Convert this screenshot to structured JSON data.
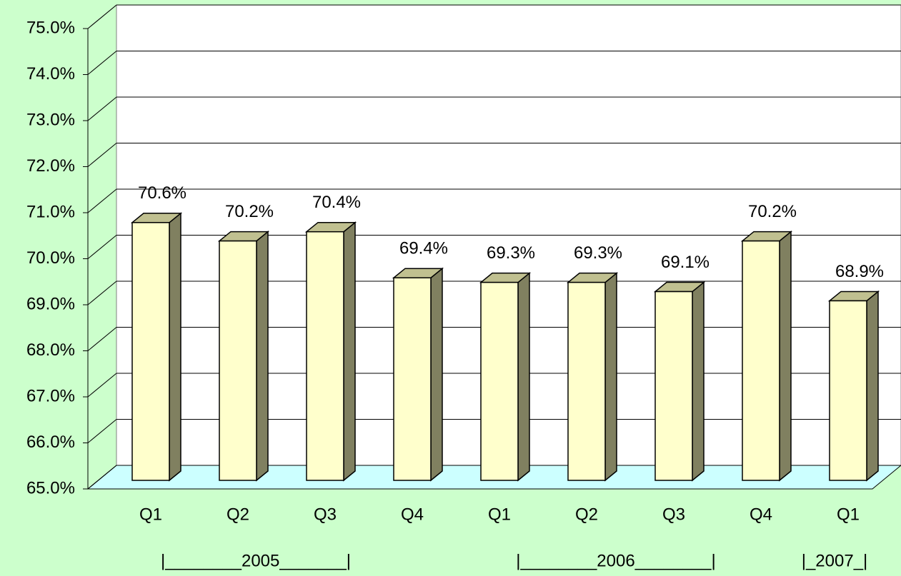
{
  "chart_data": {
    "type": "bar3d",
    "categories": [
      "Q1",
      "Q2",
      "Q3",
      "Q4",
      "Q1",
      "Q2",
      "Q3",
      "Q4",
      "Q1"
    ],
    "values": [
      70.6,
      70.2,
      70.4,
      69.4,
      69.3,
      69.3,
      69.1,
      70.2,
      68.9
    ],
    "value_labels": [
      "70.6%",
      "70.2%",
      "70.4%",
      "69.4%",
      "69.3%",
      "69.3%",
      "69.1%",
      "70.2%",
      "68.9%"
    ],
    "group_labels": [
      "|________2005_______|",
      "|________2006________|",
      "|_2007_|"
    ],
    "color": "#ffffcc",
    "ylim": [
      65,
      75
    ],
    "yticks": [
      {
        "value": 65,
        "label": "65.0%"
      },
      {
        "value": 66,
        "label": "66.0%"
      },
      {
        "value": 67,
        "label": "67.0%"
      },
      {
        "value": 68,
        "label": "68.0%"
      },
      {
        "value": 69,
        "label": "69.0%"
      },
      {
        "value": 70,
        "label": "70.0%"
      },
      {
        "value": 71,
        "label": "71.0%"
      },
      {
        "value": 72,
        "label": "72.0%"
      },
      {
        "value": 73,
        "label": "73.0%"
      },
      {
        "value": 74,
        "label": "74.0%"
      },
      {
        "value": 75,
        "label": "75.0%"
      }
    ],
    "grid": true
  }
}
